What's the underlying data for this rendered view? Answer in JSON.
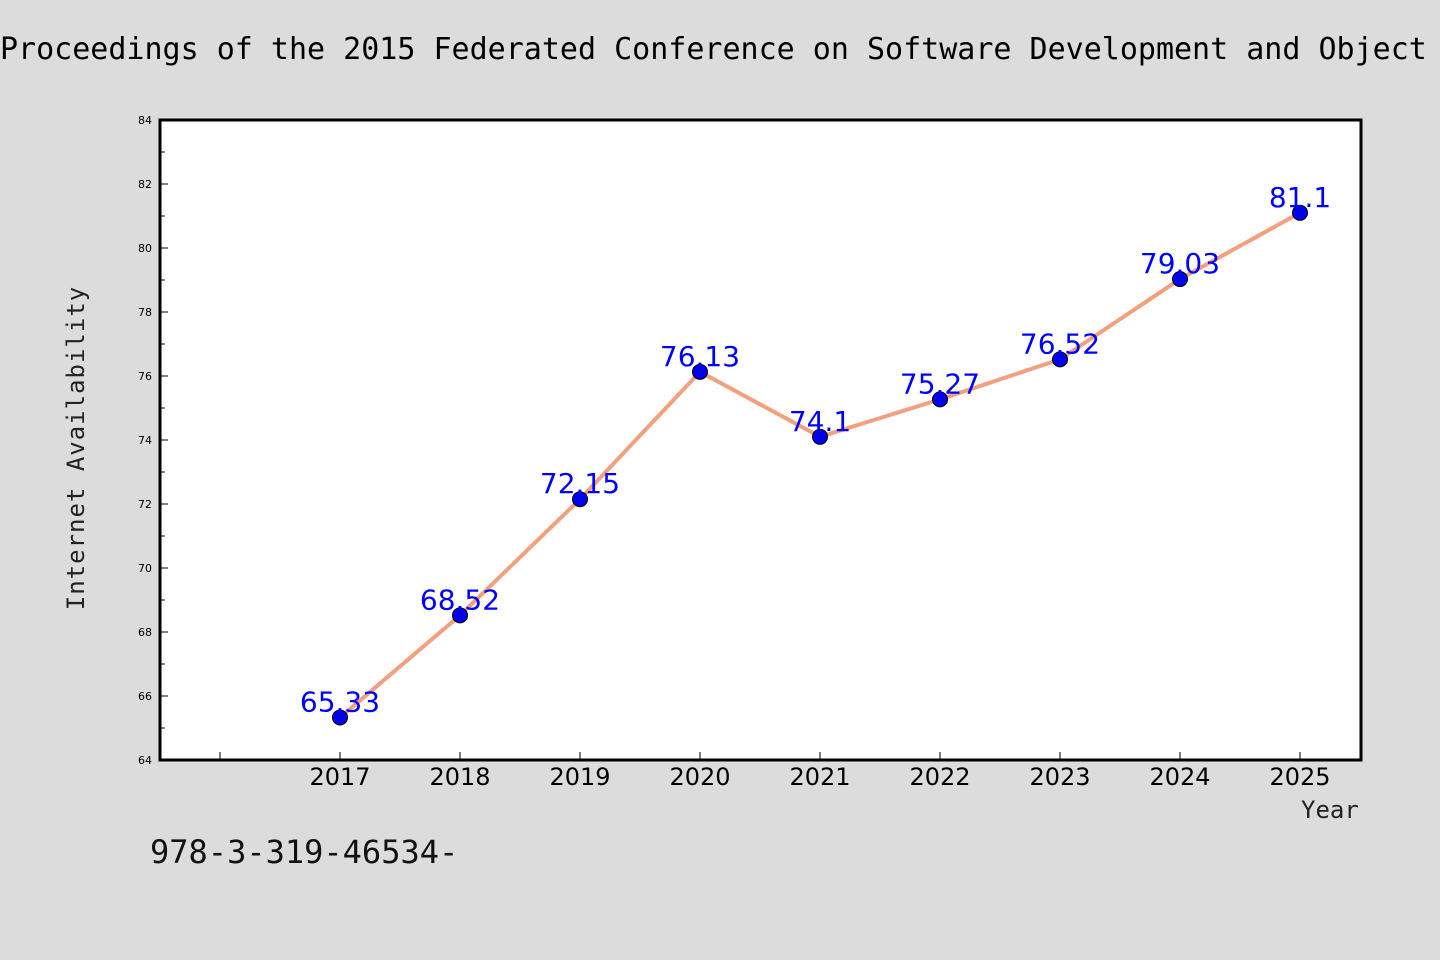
{
  "chart_data": {
    "type": "line",
    "title": "Proceedings of the 2015 Federated Conference on Software Development and Object",
    "xlabel": "Year",
    "ylabel": "Internet Availability",
    "x": [
      "2017",
      "2018",
      "2019",
      "2020",
      "2021",
      "2022",
      "2023",
      "2024",
      "2025"
    ],
    "series": [
      {
        "values": [
          65.33,
          68.52,
          72.15,
          76.13,
          74.1,
          75.27,
          76.52,
          79.03,
          81.1
        ],
        "labels": [
          "65.33",
          "68.52",
          "72.15",
          "76.13",
          "74.1",
          "75.27",
          "76.52",
          "79.03",
          "81.1"
        ],
        "line_color": "#f4a07e",
        "marker_color": "#0000ee",
        "label_color": "#0000ff"
      }
    ],
    "ylim": [
      64,
      84
    ],
    "yticks": [
      "64",
      "66",
      "68",
      "70",
      "72",
      "74",
      "76",
      "78",
      "80",
      "82",
      "84"
    ],
    "grid": false,
    "legend": "none"
  },
  "footnote": "978-3-319-46534-"
}
